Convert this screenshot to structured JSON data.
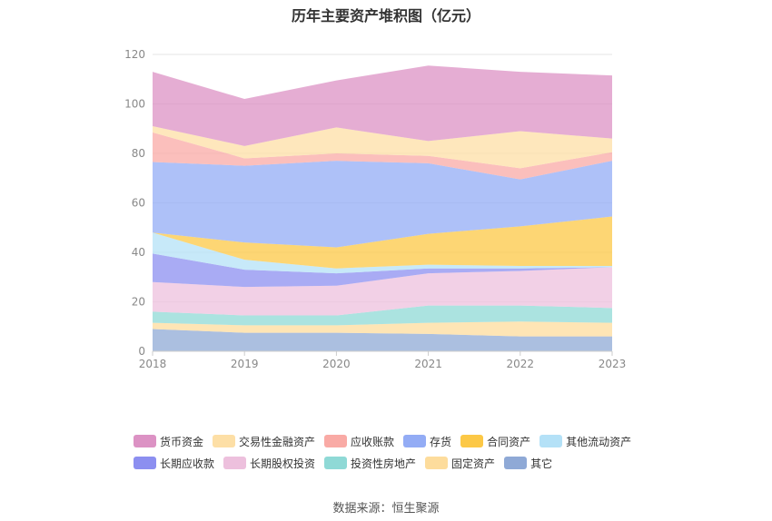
{
  "chart_data": {
    "type": "area",
    "stacked": true,
    "title": "历年主要资产堆积图（亿元）",
    "x": [
      "2018",
      "2019",
      "2020",
      "2021",
      "2022",
      "2023"
    ],
    "ylim": [
      0,
      120
    ],
    "yticks": [
      0,
      20,
      40,
      60,
      80,
      100,
      120
    ],
    "grid": true,
    "legend_position": "bottom",
    "series": [
      {
        "name": "其它",
        "color": "#8fa9d6",
        "values": [
          9.0,
          7.5,
          7.5,
          7.0,
          6.0,
          6.0
        ]
      },
      {
        "name": "固定资产",
        "color": "#fddc9c",
        "values": [
          2.5,
          3.0,
          3.0,
          4.5,
          6.0,
          5.5
        ]
      },
      {
        "name": "投资性房地产",
        "color": "#8fd9d6",
        "values": [
          4.5,
          4.0,
          4.0,
          7.0,
          6.5,
          6.0
        ]
      },
      {
        "name": "长期股权投资",
        "color": "#edc0dd",
        "values": [
          12.0,
          11.5,
          12.0,
          13.0,
          14.0,
          16.5
        ]
      },
      {
        "name": "长期应收款",
        "color": "#8c8ff0",
        "values": [
          11.5,
          7.0,
          5.0,
          2.0,
          1.0,
          0.0
        ]
      },
      {
        "name": "其他流动资产",
        "color": "#b4e1f7",
        "values": [
          8.5,
          4.0,
          2.0,
          1.5,
          1.0,
          0.5
        ]
      },
      {
        "name": "合同资产",
        "color": "#fcc846",
        "values": [
          0.0,
          7.0,
          8.5,
          12.5,
          16.0,
          20.0
        ]
      },
      {
        "name": "存货",
        "color": "#93acf5",
        "values": [
          28.5,
          31.0,
          35.0,
          28.5,
          19.0,
          22.5
        ]
      },
      {
        "name": "应收账款",
        "color": "#f9aaa5",
        "values": [
          12.0,
          3.0,
          3.0,
          3.0,
          4.5,
          3.5
        ]
      },
      {
        "name": "交易性金融资产",
        "color": "#fddfa6",
        "values": [
          2.5,
          5.0,
          10.5,
          6.0,
          15.0,
          5.5
        ]
      },
      {
        "name": "货币资金",
        "color": "#dc92c4",
        "values": [
          22.0,
          19.0,
          19.0,
          30.5,
          24.0,
          25.5
        ]
      }
    ]
  },
  "legend": {
    "row1": [
      {
        "name": "货币资金",
        "color": "#dc92c4"
      },
      {
        "name": "交易性金融资产",
        "color": "#fddfa6"
      },
      {
        "name": "应收账款",
        "color": "#f9aaa5"
      },
      {
        "name": "存货",
        "color": "#93acf5"
      },
      {
        "name": "合同资产",
        "color": "#fcc846"
      },
      {
        "name": "其他流动资产",
        "color": "#b4e1f7"
      }
    ],
    "row2": [
      {
        "name": "长期应收款",
        "color": "#8c8ff0"
      },
      {
        "name": "长期股权投资",
        "color": "#edc0dd"
      },
      {
        "name": "投资性房地产",
        "color": "#8fd9d6"
      },
      {
        "name": "固定资产",
        "color": "#fddc9c"
      },
      {
        "name": "其它",
        "color": "#8fa9d6"
      }
    ]
  },
  "footer": "数据来源：恒生聚源"
}
